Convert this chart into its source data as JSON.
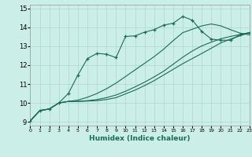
{
  "xlabel": "Humidex (Indice chaleur)",
  "xlim": [
    0,
    23
  ],
  "ylim": [
    8.8,
    15.2
  ],
  "xticks": [
    0,
    1,
    2,
    3,
    4,
    5,
    6,
    7,
    8,
    9,
    10,
    11,
    12,
    13,
    14,
    15,
    16,
    17,
    18,
    19,
    20,
    21,
    22,
    23
  ],
  "yticks": [
    9,
    10,
    11,
    12,
    13,
    14,
    15
  ],
  "background_color": "#cceee8",
  "grid_color": "#aad8d0",
  "line_color": "#1a6b5a",
  "line1_y": [
    9.05,
    9.6,
    9.68,
    10.0,
    10.08,
    10.08,
    10.1,
    10.12,
    10.18,
    10.28,
    10.48,
    10.68,
    10.92,
    11.18,
    11.48,
    11.78,
    12.08,
    12.35,
    12.62,
    12.9,
    13.18,
    13.38,
    13.55,
    13.72
  ],
  "line2_y": [
    9.05,
    9.6,
    9.68,
    10.0,
    10.08,
    10.08,
    10.12,
    10.18,
    10.28,
    10.42,
    10.62,
    10.85,
    11.1,
    11.38,
    11.68,
    12.05,
    12.42,
    12.75,
    13.02,
    13.22,
    13.4,
    13.52,
    13.62,
    13.72
  ],
  "line3_y": [
    9.05,
    9.6,
    9.68,
    10.0,
    10.08,
    10.15,
    10.3,
    10.5,
    10.75,
    11.05,
    11.4,
    11.75,
    12.1,
    12.45,
    12.85,
    13.3,
    13.72,
    13.9,
    14.08,
    14.18,
    14.08,
    13.88,
    13.7,
    13.6
  ],
  "markers_y": [
    9.05,
    9.58,
    9.68,
    10.0,
    10.5,
    11.48,
    12.35,
    12.62,
    12.58,
    12.4,
    13.52,
    13.55,
    13.75,
    13.88,
    14.12,
    14.22,
    14.58,
    14.38,
    13.78,
    13.38,
    13.32,
    13.32,
    13.62,
    13.72
  ]
}
